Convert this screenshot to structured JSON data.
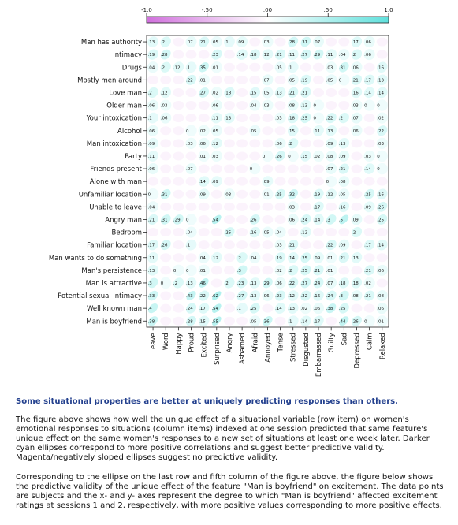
{
  "chart_data": {
    "type": "heatmap",
    "description_encoding": "correlation ellipses (cyan = positive, magenta = negative)",
    "color_scale": {
      "ticks": [
        "-1.0",
        "-.50",
        ".00",
        ".50",
        "1.0"
      ],
      "range": [
        -1.0,
        1.0
      ],
      "negative_color": "#e080e8",
      "positive_color": "#7fe8e4"
    },
    "rows": [
      "Man has authority",
      "Intimacy",
      "Drugs",
      "Mostly men around",
      "Love man",
      "Older man",
      "Your intoxication",
      "Alcohol",
      "Man  intoxication",
      "Party",
      "Friends present",
      "Alone with man",
      "Unfamiliar location",
      "Unable to leave",
      "Angry man",
      "Bedroom",
      "Familiar location",
      "Man wants to do something",
      "Man's persistence",
      "Man is attractive",
      "Potential sexual intimacy",
      "Well known man",
      "Man is boyfriend"
    ],
    "columns": [
      "Leave",
      "Word",
      "Happy",
      "Proud",
      "Excited",
      "Surprised",
      "Angry",
      "Ashamed",
      "Afraid",
      "Annoyed",
      "Tense",
      "Stressed",
      "Disgusted",
      "Embarrassed",
      "Guilty",
      "Sad",
      "Depressed",
      "Calm",
      "Relaxed"
    ],
    "values": [
      [
        ".13",
        ".2",
        "",
        ".07",
        ".21",
        ".05",
        ".1",
        ".09",
        "",
        ".03",
        "",
        ".28",
        ".31",
        ".07",
        "",
        "",
        ".17",
        ".06",
        ""
      ],
      [
        ".19",
        ".28",
        "",
        "",
        "",
        ".23",
        "",
        ".14",
        ".18",
        ".12",
        ".21",
        ".11",
        ".27",
        ".29",
        ".11",
        ".04",
        ".2",
        ".06",
        ""
      ],
      [
        ".04",
        ".2",
        ".12",
        ".1",
        ".35",
        ".01",
        "",
        "",
        "",
        "",
        ".05",
        ".1",
        "",
        "",
        ".03",
        ".31",
        ".06",
        "",
        ".16"
      ],
      [
        "",
        "",
        "",
        ".22",
        ".01",
        "",
        "",
        "",
        "",
        ".07",
        "",
        ".05",
        ".19",
        "",
        ".05",
        "0",
        ".21",
        ".17",
        ".13"
      ],
      [
        ".2",
        ".12",
        "",
        "",
        ".27",
        ".02",
        ".18",
        "",
        ".15",
        ".05",
        ".13",
        ".21",
        ".21",
        "",
        "",
        "",
        ".16",
        ".14",
        ".14"
      ],
      [
        ".06",
        ".03",
        "",
        "",
        "",
        ".06",
        "",
        "",
        ".04",
        ".03",
        "",
        ".08",
        ".13",
        "0",
        "",
        "",
        ".03",
        "0",
        "0"
      ],
      [
        ".1",
        ".06",
        "",
        "",
        "",
        ".11",
        ".13",
        "",
        "",
        "",
        ".03",
        ".18",
        ".25",
        "0",
        ".22",
        ".2",
        ".07",
        "",
        ".02"
      ],
      [
        ".06",
        "",
        "",
        "0",
        ".02",
        ".05",
        "",
        "",
        ".05",
        "",
        "",
        ".15",
        "",
        ".11",
        ".13",
        "",
        ".06",
        "",
        ".22"
      ],
      [
        ".09",
        "",
        "",
        ".03",
        ".06",
        ".12",
        "",
        "",
        "",
        "",
        ".06",
        ".2",
        "",
        "",
        ".09",
        ".13",
        "",
        "",
        ".03"
      ],
      [
        ".11",
        "",
        "",
        "",
        ".01",
        ".03",
        "",
        "",
        "",
        "0",
        ".26",
        "0",
        ".15",
        ".02",
        ".08",
        ".09",
        "",
        ".03",
        "0"
      ],
      [
        ".06",
        "",
        "",
        ".07",
        "",
        "",
        "",
        "",
        "0",
        "",
        "",
        "",
        "",
        "",
        ".07",
        ".21",
        "",
        ".14",
        "0"
      ],
      [
        "",
        "",
        "",
        "",
        ".14",
        ".09",
        "",
        "",
        "",
        ".09",
        "",
        "",
        "",
        "",
        "0",
        ".08",
        "",
        "",
        ""
      ],
      [
        "0",
        ".31",
        "",
        "",
        ".09",
        "",
        ".03",
        "",
        "",
        ".01",
        ".25",
        ".32",
        "",
        ".19",
        ".12",
        ".05",
        "",
        ".25",
        ".16"
      ],
      [
        ".04",
        "",
        "",
        "",
        "",
        "",
        "",
        "",
        "",
        "",
        "",
        ".03",
        "",
        ".17",
        "",
        ".16",
        "",
        ".09",
        ".26"
      ],
      [
        ".21",
        ".31",
        ".29",
        "0",
        "",
        ".54",
        "",
        "",
        ".26",
        "",
        "",
        ".06",
        ".24",
        ".14",
        ".3",
        ".5",
        ".09",
        "",
        ".25"
      ],
      [
        "",
        "",
        "",
        ".04",
        "",
        "",
        ".25",
        "",
        ".16",
        ".05",
        ".04",
        "",
        ".12",
        "",
        "",
        "",
        ".2",
        "",
        ""
      ],
      [
        ".17",
        ".26",
        "",
        ".1",
        "",
        "",
        "",
        "",
        "",
        "",
        ".03",
        ".21",
        "",
        "",
        ".22",
        ".09",
        "",
        ".17",
        ".14"
      ],
      [
        ".11",
        "",
        "",
        "",
        ".04",
        ".12",
        "",
        ".2",
        ".04",
        "",
        ".19",
        ".14",
        ".25",
        ".09",
        ".01",
        ".21",
        ".13",
        "",
        ""
      ],
      [
        ".13",
        "",
        "0",
        "0",
        ".01",
        "",
        "",
        ".3",
        "",
        "",
        ".02",
        ".2",
        ".25",
        ".21",
        ".01",
        "",
        "",
        ".21",
        ".06"
      ],
      [
        ".3",
        "0",
        ".2",
        ".13",
        ".46",
        "",
        ".2",
        ".23",
        ".13",
        ".29",
        ".06",
        ".22",
        ".27",
        ".24",
        ".07",
        ".18",
        ".18",
        ".02",
        ""
      ],
      [
        ".33",
        "",
        "",
        ".43",
        ".22",
        ".62",
        "",
        ".27",
        ".13",
        ".06",
        ".23",
        ".12",
        ".22",
        ".16",
        ".24",
        ".3",
        ".08",
        ".21",
        ".08"
      ],
      [
        ".4",
        "",
        "",
        ".24",
        ".17",
        ".54",
        "",
        ".1",
        ".25",
        "",
        ".14",
        ".13",
        ".02",
        ".06",
        ".38",
        ".25",
        "",
        "",
        ".06"
      ],
      [
        ".38",
        "",
        "",
        ".28",
        ".15",
        ".55",
        "",
        "",
        ".05",
        ".36",
        "",
        ".1",
        ".14",
        ".17",
        "",
        ".44",
        ".26",
        "0",
        ".01"
      ]
    ]
  },
  "caption": {
    "heading": "Some situational properties are better at uniquely predicting responses than others.",
    "paragraph1": "The figure above shows how well the unique effect of a situational variable (row item) on women's emotional responses to situations (column items) indexed at one session predicted that same feature's unique effect on the same women's responses to a new set of situations at least one week later.  Darker cyan ellipses correspond to more positive correlations and suggest better predictive validity.  Magenta/negatively sloped ellipses suggest no predictive validity.",
    "paragraph2": "Corresponding to the ellipse on the last row and fifth column of the figure above, the figure below shows the predictive validity of the unique effect of the feature \"Man is boyfriend\" on excitement.  The data points are subjects and the x- and y- axes represent the degree to which \"Man is boyfriend\" affected excitement ratings at sessions 1 and 2, respectively, with more positive values corresponding to more positive effects."
  }
}
